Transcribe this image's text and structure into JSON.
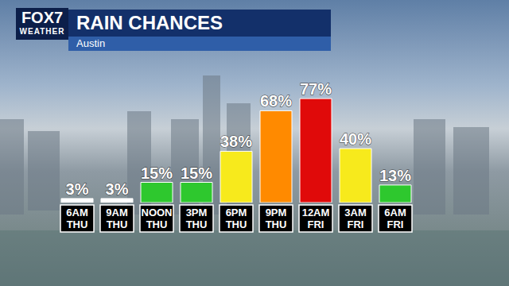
{
  "chart_data": {
    "type": "bar",
    "title": "RAIN CHANCES",
    "subtitle": "Austin",
    "annotations": [
      "FOX7",
      "WEATHER"
    ],
    "categories": [
      "6AM\nTHU",
      "9AM\nTHU",
      "NOON\nTHU",
      "3PM\nTHU",
      "6PM\nTHU",
      "9PM\nTHU",
      "12AM\nFRI",
      "3AM\nFRI",
      "6AM\nFRI"
    ],
    "values": [
      3,
      3,
      15,
      15,
      38,
      68,
      77,
      40,
      13
    ],
    "value_labels": [
      "3%",
      "3%",
      "15%",
      "15%",
      "38%",
      "68%",
      "77%",
      "40%",
      "13%"
    ],
    "colors": [
      "#ffffff",
      "#ffffff",
      "#2ec82e",
      "#2ec82e",
      "#f7ea1c",
      "#ff8a00",
      "#e00a0a",
      "#f7ea1c",
      "#2ec82e"
    ],
    "ylim": [
      0,
      100
    ],
    "tick_labels": false,
    "data_labels": true,
    "grid": false
  }
}
